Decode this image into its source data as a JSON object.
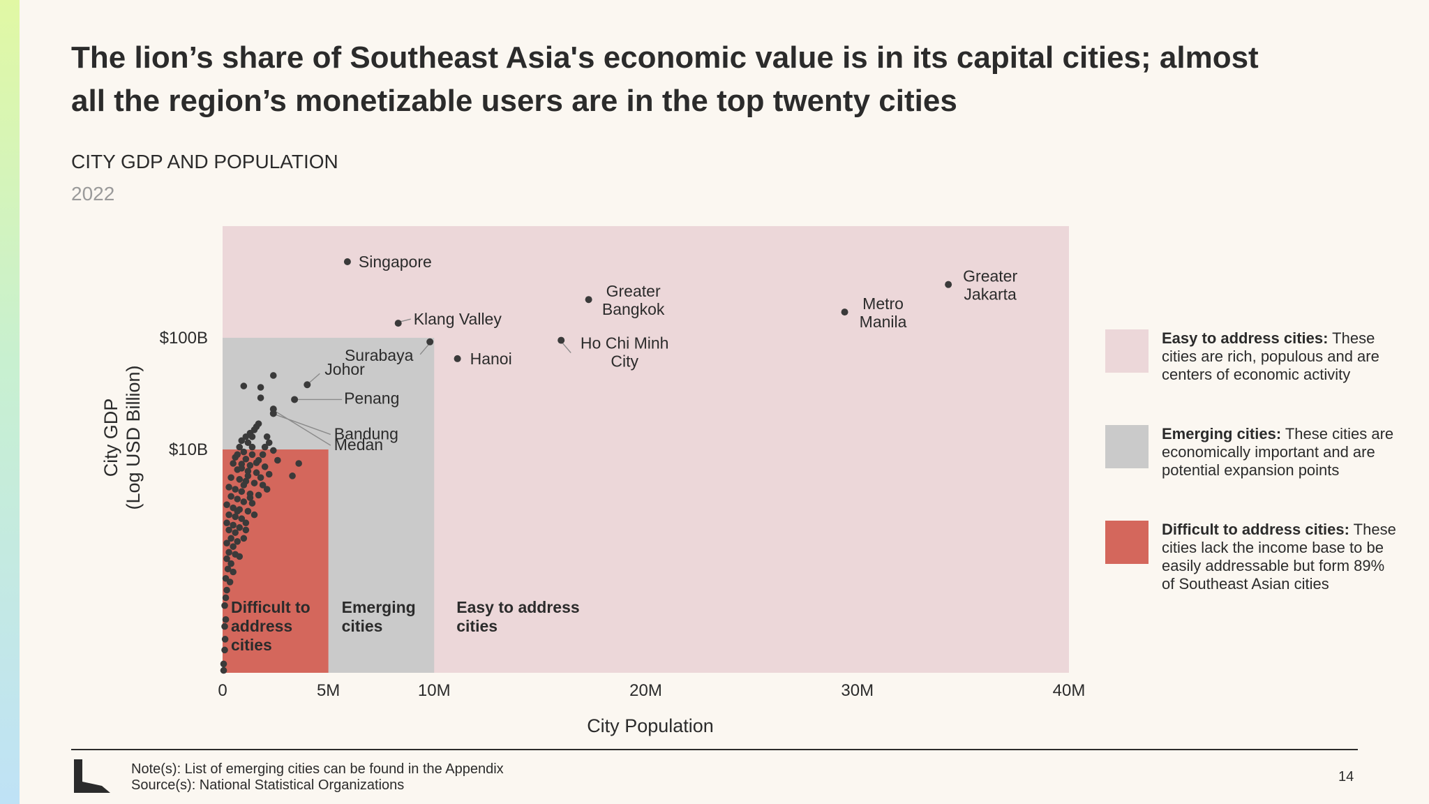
{
  "header": {
    "title": "The lion’s share of Southeast Asia's economic value is in its capital cities; almost all the region’s monetizable users are in the top twenty cities",
    "subtitle": "CITY GDP AND POPULATION",
    "year": "2022"
  },
  "colors": {
    "easy": "#ecd7d9",
    "emerging": "#cacaca",
    "difficult": "#d4675c",
    "point": "#3a3a3a",
    "text": "#2b2b2b"
  },
  "chart_data": {
    "type": "scatter",
    "xlabel": "City Population",
    "ylabel": "City GDP\n(Log USD Billion)",
    "x_ticks": [
      {
        "value": 0,
        "label": "0"
      },
      {
        "value": 5,
        "label": "5M"
      },
      {
        "value": 10,
        "label": "10M"
      },
      {
        "value": 20,
        "label": "20M"
      },
      {
        "value": 30,
        "label": "30M"
      },
      {
        "value": 40,
        "label": "40M"
      }
    ],
    "y_ticks": [
      {
        "value": 10,
        "label": "$10B"
      },
      {
        "value": 100,
        "label": "$100B"
      }
    ],
    "x_unit": "million people",
    "y_unit": "USD billion",
    "y_scale": "log",
    "xlim": [
      0,
      40
    ],
    "ylim": [
      0.1,
      1000
    ],
    "grid": false,
    "regions": [
      {
        "key": "easy",
        "label": "Easy to address cities",
        "x": [
          0,
          40
        ],
        "y": [
          0.1,
          1000
        ]
      },
      {
        "key": "emerging",
        "label": "Emerging cities",
        "x": [
          0,
          10
        ],
        "y": [
          0.1,
          100
        ]
      },
      {
        "key": "difficult",
        "label": "Difficult to address cities",
        "x": [
          0,
          5
        ],
        "y": [
          0.1,
          10
        ]
      }
    ],
    "labeled_points": [
      {
        "name": "Singapore",
        "x": 5.9,
        "y": 480
      },
      {
        "name": "Greater Bangkok",
        "x": 17.3,
        "y": 220
      },
      {
        "name": "Greater Jakarta",
        "x": 34.3,
        "y": 300
      },
      {
        "name": "Metro Manila",
        "x": 29.4,
        "y": 170
      },
      {
        "name": "Klang Valley",
        "x": 8.3,
        "y": 135
      },
      {
        "name": "Ho Chi Minh City",
        "x": 16.0,
        "y": 95
      },
      {
        "name": "Hanoi",
        "x": 11.1,
        "y": 65
      },
      {
        "name": "Surabaya",
        "x": 9.8,
        "y": 92
      },
      {
        "name": "Johor",
        "x": 4.0,
        "y": 38
      },
      {
        "name": "Penang",
        "x": 3.4,
        "y": 28
      },
      {
        "name": "Bandung",
        "x": 2.4,
        "y": 21
      },
      {
        "name": "Medan",
        "x": 2.4,
        "y": 23
      }
    ],
    "points": [
      {
        "x": 1.0,
        "y": 37
      },
      {
        "x": 1.8,
        "y": 36
      },
      {
        "x": 2.4,
        "y": 46
      },
      {
        "x": 1.8,
        "y": 29
      },
      {
        "x": 1.7,
        "y": 17
      },
      {
        "x": 1.6,
        "y": 16
      },
      {
        "x": 1.5,
        "y": 15
      },
      {
        "x": 1.3,
        "y": 14
      },
      {
        "x": 1.4,
        "y": 13
      },
      {
        "x": 1.1,
        "y": 13
      },
      {
        "x": 0.9,
        "y": 12
      },
      {
        "x": 1.2,
        "y": 11.5
      },
      {
        "x": 0.8,
        "y": 10.5
      },
      {
        "x": 2.1,
        "y": 13
      },
      {
        "x": 2.2,
        "y": 11.5
      },
      {
        "x": 2.4,
        "y": 9.8
      },
      {
        "x": 1.0,
        "y": 9.5
      },
      {
        "x": 1.4,
        "y": 9.0
      },
      {
        "x": 1.9,
        "y": 9.0
      },
      {
        "x": 0.6,
        "y": 8.5
      },
      {
        "x": 1.1,
        "y": 8.2
      },
      {
        "x": 1.7,
        "y": 8.0
      },
      {
        "x": 2.6,
        "y": 8.0
      },
      {
        "x": 0.5,
        "y": 7.5
      },
      {
        "x": 0.9,
        "y": 7.4
      },
      {
        "x": 1.3,
        "y": 7.2
      },
      {
        "x": 2.0,
        "y": 7.0
      },
      {
        "x": 0.7,
        "y": 6.6
      },
      {
        "x": 1.2,
        "y": 6.4
      },
      {
        "x": 1.6,
        "y": 6.2
      },
      {
        "x": 2.2,
        "y": 6.0
      },
      {
        "x": 3.6,
        "y": 7.5
      },
      {
        "x": 3.3,
        "y": 5.8
      },
      {
        "x": 0.4,
        "y": 5.6
      },
      {
        "x": 0.8,
        "y": 5.4
      },
      {
        "x": 1.1,
        "y": 5.2
      },
      {
        "x": 1.5,
        "y": 5.0
      },
      {
        "x": 1.9,
        "y": 4.8
      },
      {
        "x": 2.1,
        "y": 4.4
      },
      {
        "x": 0.3,
        "y": 4.6
      },
      {
        "x": 0.6,
        "y": 4.4
      },
      {
        "x": 0.9,
        "y": 4.2
      },
      {
        "x": 1.3,
        "y": 4.0
      },
      {
        "x": 1.7,
        "y": 3.9
      },
      {
        "x": 0.4,
        "y": 3.8
      },
      {
        "x": 0.7,
        "y": 3.6
      },
      {
        "x": 1.0,
        "y": 3.4
      },
      {
        "x": 1.4,
        "y": 3.3
      },
      {
        "x": 0.2,
        "y": 3.2
      },
      {
        "x": 0.5,
        "y": 3.0
      },
      {
        "x": 0.8,
        "y": 2.9
      },
      {
        "x": 1.2,
        "y": 2.8
      },
      {
        "x": 0.3,
        "y": 2.6
      },
      {
        "x": 0.6,
        "y": 2.5
      },
      {
        "x": 0.9,
        "y": 2.4
      },
      {
        "x": 1.5,
        "y": 2.6
      },
      {
        "x": 0.2,
        "y": 2.2
      },
      {
        "x": 0.5,
        "y": 2.1
      },
      {
        "x": 0.8,
        "y": 2.0
      },
      {
        "x": 1.1,
        "y": 2.2
      },
      {
        "x": 0.3,
        "y": 1.9
      },
      {
        "x": 0.6,
        "y": 1.8
      },
      {
        "x": 0.4,
        "y": 1.6
      },
      {
        "x": 0.7,
        "y": 1.5
      },
      {
        "x": 1.0,
        "y": 1.6
      },
      {
        "x": 0.2,
        "y": 1.45
      },
      {
        "x": 0.5,
        "y": 1.35
      },
      {
        "x": 0.3,
        "y": 1.2
      },
      {
        "x": 0.6,
        "y": 1.15
      },
      {
        "x": 0.2,
        "y": 1.05
      },
      {
        "x": 0.4,
        "y": 0.95
      },
      {
        "x": 0.8,
        "y": 1.1
      },
      {
        "x": 0.25,
        "y": 0.85
      },
      {
        "x": 0.5,
        "y": 0.8
      },
      {
        "x": 0.15,
        "y": 0.7
      },
      {
        "x": 0.35,
        "y": 0.65
      },
      {
        "x": 0.2,
        "y": 0.55
      },
      {
        "x": 0.15,
        "y": 0.47
      },
      {
        "x": 0.1,
        "y": 0.4
      },
      {
        "x": 0.15,
        "y": 0.3
      },
      {
        "x": 0.1,
        "y": 0.26
      },
      {
        "x": 0.12,
        "y": 0.2
      },
      {
        "x": 0.1,
        "y": 0.16
      },
      {
        "x": 0.05,
        "y": 0.12
      },
      {
        "x": 0.05,
        "y": 0.105
      },
      {
        "x": 1.2,
        "y": 5.8
      },
      {
        "x": 1.6,
        "y": 7.6
      },
      {
        "x": 0.9,
        "y": 6.8
      },
      {
        "x": 1.8,
        "y": 5.6
      },
      {
        "x": 1.4,
        "y": 10.5
      },
      {
        "x": 0.7,
        "y": 9.0
      },
      {
        "x": 2.0,
        "y": 10.5
      },
      {
        "x": 1.0,
        "y": 4.8
      },
      {
        "x": 1.3,
        "y": 3.7
      },
      {
        "x": 0.7,
        "y": 2.8
      },
      {
        "x": 1.1,
        "y": 1.9
      }
    ]
  },
  "legend": [
    {
      "key": "easy",
      "title": "Easy to address cities:",
      "desc": "These cities are rich, populous and are centers of economic activity"
    },
    {
      "key": "emerging",
      "title": "Emerging cities:",
      "desc": "These cities are economically important and are potential expansion points"
    },
    {
      "key": "difficult",
      "title": "Difficult to address cities:",
      "desc": "These cities lack the income base to be easily addressable but form 89% of Southeast Asian cities"
    }
  ],
  "footer": {
    "note": "Note(s): List of emerging cities can be found in the Appendix",
    "source": "Source(s): National Statistical Organizations",
    "page_number": "14"
  }
}
